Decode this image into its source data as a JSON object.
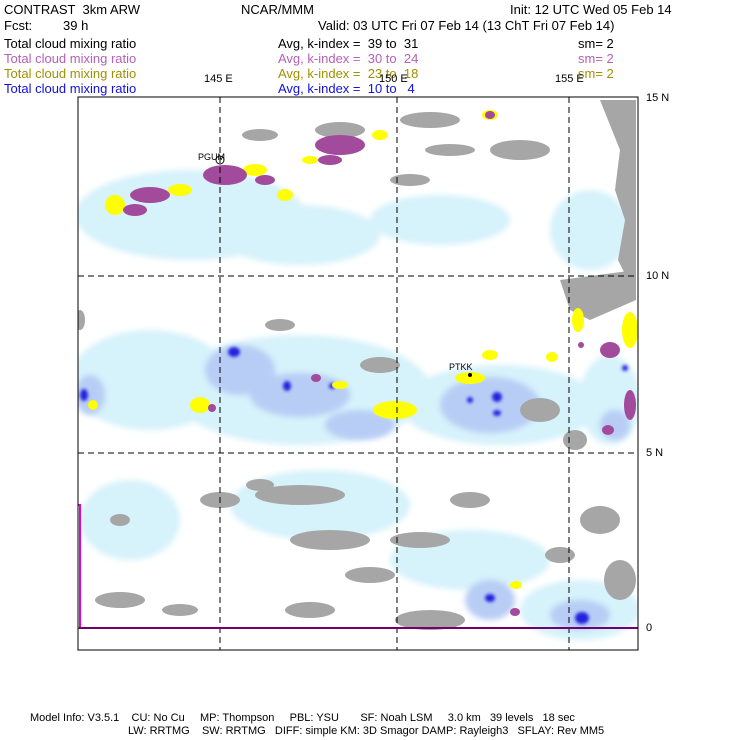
{
  "header": {
    "model_name": "CONTRAST  3km ARW",
    "center": "NCAR/MMM",
    "init": "Init: 12 UTC Wed 05 Feb 14",
    "fcst_label": "Fcst:",
    "fcst_value": "39 h",
    "valid": "Valid: 03 UTC Fri 07 Feb 14 (13 ChT Fri 07 Feb 14)"
  },
  "legend": [
    {
      "field": "Total cloud mixing ratio",
      "range": "Avg, k-index =  39 to  31",
      "smooth": "sm= 2",
      "color": "#000000"
    },
    {
      "field": "Total cloud mixing ratio",
      "range": "Avg, k-index =  30 to  24",
      "smooth": "sm= 2",
      "color": "#b560b8"
    },
    {
      "field": "Total cloud mixing ratio",
      "range": "Avg, k-index =  23 to  18",
      "smooth": "sm= 2",
      "color": "#a09000"
    },
    {
      "field": "Total cloud mixing ratio",
      "range": "Avg, k-index =  10 to   4",
      "smooth": "",
      "color": "#1010e0"
    }
  ],
  "axes": {
    "lon_labels": [
      "145 E",
      "150 E",
      "155 E"
    ],
    "lat_labels": [
      "15 N",
      "10 N",
      "5 N",
      "0"
    ]
  },
  "stations": [
    "PGUM",
    "PTKK"
  ],
  "footer": {
    "line1": "Model Info: V3.5.1    CU: No Cu     MP: Thompson     PBL: YSU       SF: Noah LSM     3.0 km   39 levels   18 sec",
    "line2": "LW: RRTMG    SW: RRTMG   DIFF: simple KM: 3D Smagor DAMP: Rayleigh3   SFLAY: Rev MM5"
  },
  "colors": {
    "low_cloud_gray": "#a6a6a6",
    "mid_cloud_purple": "#a24a9c",
    "upper_cloud_yellow": "#ffff00",
    "high_cloud_lightblue": "#d6f2fb",
    "high_cloud_blue": "#b8cdf5",
    "high_cloud_deepblue": "#1818e0",
    "boundary_magenta": "#e000e0"
  }
}
